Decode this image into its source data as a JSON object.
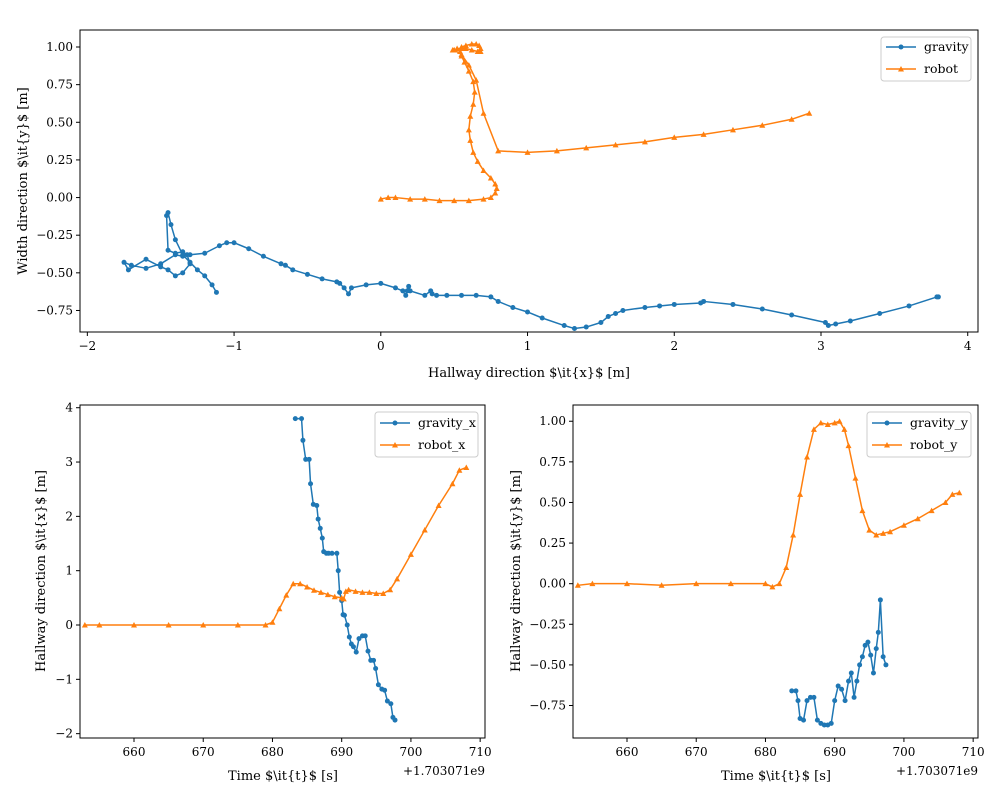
{
  "colors": {
    "gravity": "#1f77b4",
    "robot": "#ff7f0e"
  },
  "chart_data": [
    {
      "type": "line",
      "xlabel": "Hallway direction $\\it{x}$ [m]",
      "ylabel": "Width direction $\\it{y}$ [m]",
      "xlim": [
        -2.05,
        4.07
      ],
      "ylim": [
        -0.893,
        1.113
      ],
      "xticks": [
        -2,
        -1,
        0,
        1,
        2,
        3,
        4
      ],
      "yticks": [
        -0.75,
        -0.5,
        -0.25,
        0.0,
        0.25,
        0.5,
        0.75,
        1.0
      ],
      "xtick_labels": [
        "−2",
        "−1",
        "0",
        "1",
        "2",
        "3",
        "4"
      ],
      "ytick_labels": [
        "−0.75",
        "−0.50",
        "−0.25",
        "0.00",
        "0.25",
        "0.50",
        "0.75",
        "1.00"
      ],
      "legend_position": "top-right",
      "grid": false,
      "series": [
        {
          "name": "gravity",
          "marker": "circle",
          "x": [
            3.8,
            3.79,
            3.6,
            3.4,
            3.2,
            3.1,
            3.05,
            3.03,
            2.8,
            2.6,
            2.4,
            2.2,
            2.18,
            2.0,
            1.9,
            1.8,
            1.65,
            1.6,
            1.55,
            1.5,
            1.4,
            1.32,
            1.25,
            1.1,
            1.0,
            0.9,
            0.8,
            0.75,
            0.65,
            0.55,
            0.45,
            0.38,
            0.35,
            0.34,
            0.3,
            0.2,
            0.19,
            0.18,
            0.17,
            0.15,
            0.1,
            0.0,
            -0.1,
            -0.2,
            -0.22,
            -0.25,
            -0.28,
            -0.3,
            -0.4,
            -0.5,
            -0.6,
            -0.65,
            -0.68,
            -0.8,
            -0.9,
            -1.0,
            -1.05,
            -1.1,
            -1.2,
            -1.3,
            -1.35,
            -1.4,
            -1.5,
            -1.6,
            -1.7,
            -1.75,
            -1.72,
            -1.6,
            -1.5,
            -1.45,
            -1.4,
            -1.35,
            -1.3,
            -1.32,
            -1.35,
            -1.4,
            -1.45,
            -1.46,
            -1.45,
            -1.43,
            -1.4,
            -1.35,
            -1.3,
            -1.25,
            -1.2,
            -1.15,
            -1.12
          ],
          "y": [
            -0.66,
            -0.66,
            -0.72,
            -0.77,
            -0.82,
            -0.84,
            -0.85,
            -0.83,
            -0.78,
            -0.74,
            -0.71,
            -0.69,
            -0.7,
            -0.71,
            -0.72,
            -0.73,
            -0.75,
            -0.77,
            -0.79,
            -0.83,
            -0.86,
            -0.87,
            -0.85,
            -0.8,
            -0.76,
            -0.73,
            -0.69,
            -0.66,
            -0.65,
            -0.65,
            -0.65,
            -0.65,
            -0.64,
            -0.62,
            -0.65,
            -0.62,
            -0.59,
            -0.62,
            -0.65,
            -0.62,
            -0.6,
            -0.57,
            -0.58,
            -0.6,
            -0.64,
            -0.6,
            -0.57,
            -0.56,
            -0.54,
            -0.51,
            -0.48,
            -0.45,
            -0.44,
            -0.39,
            -0.34,
            -0.3,
            -0.3,
            -0.32,
            -0.37,
            -0.38,
            -0.39,
            -0.38,
            -0.44,
            -0.47,
            -0.45,
            -0.43,
            -0.48,
            -0.41,
            -0.46,
            -0.48,
            -0.52,
            -0.5,
            -0.44,
            -0.38,
            -0.36,
            -0.37,
            -0.35,
            -0.12,
            -0.1,
            -0.18,
            -0.28,
            -0.38,
            -0.43,
            -0.48,
            -0.52,
            -0.58,
            -0.63
          ]
        },
        {
          "name": "robot",
          "marker": "triangle",
          "x": [
            0.0,
            0.05,
            0.1,
            0.2,
            0.3,
            0.4,
            0.5,
            0.6,
            0.7,
            0.75,
            0.78,
            0.79,
            0.78,
            0.75,
            0.7,
            0.66,
            0.63,
            0.61,
            0.6,
            0.61,
            0.63,
            0.64,
            0.63,
            0.6,
            0.57,
            0.55,
            0.54,
            0.55,
            0.58,
            0.62,
            0.65,
            0.67,
            0.68,
            0.68,
            0.66,
            0.62,
            0.58,
            0.55,
            0.52,
            0.5,
            0.49,
            0.5,
            0.55,
            0.6,
            0.65,
            0.7,
            0.8,
            1.0,
            1.2,
            1.4,
            1.6,
            1.8,
            2.0,
            2.2,
            2.4,
            2.6,
            2.8,
            2.92
          ],
          "y": [
            -0.01,
            0.0,
            0.0,
            -0.01,
            -0.01,
            -0.02,
            -0.02,
            -0.02,
            -0.01,
            0.0,
            0.03,
            0.06,
            0.09,
            0.13,
            0.18,
            0.24,
            0.3,
            0.38,
            0.45,
            0.54,
            0.62,
            0.7,
            0.77,
            0.84,
            0.9,
            0.94,
            0.97,
            1.0,
            1.01,
            1.02,
            1.02,
            1.01,
            0.99,
            0.97,
            0.97,
            0.98,
            0.99,
            0.99,
            0.99,
            0.98,
            0.98,
            0.98,
            0.95,
            0.88,
            0.78,
            0.56,
            0.31,
            0.3,
            0.31,
            0.33,
            0.35,
            0.37,
            0.4,
            0.42,
            0.45,
            0.48,
            0.52,
            0.56
          ]
        }
      ]
    },
    {
      "type": "line",
      "xlabel": "Time $\\it{t}$ [s]",
      "ylabel": "Hallway direction $\\it{x}$ [m]",
      "x_offset_label": "+1.703071e9",
      "xlim": [
        652.2,
        710.7
      ],
      "ylim": [
        -2.08,
        4.05
      ],
      "xticks": [
        660,
        670,
        680,
        690,
        700,
        710
      ],
      "yticks": [
        -2,
        -1,
        0,
        1,
        2,
        3,
        4
      ],
      "xtick_labels": [
        "660",
        "670",
        "680",
        "690",
        "700",
        "710"
      ],
      "ytick_labels": [
        "−2",
        "−1",
        "0",
        "1",
        "2",
        "3",
        "4"
      ],
      "legend_position": "top-right",
      "grid": false,
      "series": [
        {
          "name": "gravity_x",
          "marker": "circle",
          "x": [
            683.3,
            684.2,
            684.4,
            684.8,
            685.3,
            685.5,
            685.9,
            686.4,
            686.6,
            686.9,
            687.2,
            687.4,
            687.8,
            688.1,
            688.6,
            689.3,
            689.5,
            689.7,
            690.0,
            690.2,
            690.4,
            690.8,
            691.1,
            691.4,
            691.7,
            692.1,
            692.5,
            693.0,
            693.4,
            693.8,
            694.2,
            694.6,
            694.9,
            695.3,
            695.8,
            696.2,
            696.6,
            697.1,
            697.4,
            697.7
          ],
          "y": [
            3.8,
            3.8,
            3.4,
            3.05,
            3.05,
            2.6,
            2.22,
            2.2,
            1.95,
            1.78,
            1.6,
            1.35,
            1.32,
            1.32,
            1.32,
            1.32,
            1.0,
            0.6,
            0.45,
            0.19,
            0.18,
            0.0,
            -0.22,
            -0.35,
            -0.4,
            -0.5,
            -0.25,
            -0.2,
            -0.2,
            -0.48,
            -0.65,
            -0.65,
            -0.8,
            -1.1,
            -1.18,
            -1.2,
            -1.4,
            -1.45,
            -1.7,
            -1.75
          ]
        },
        {
          "name": "robot_x",
          "marker": "triangle",
          "x": [
            652.9,
            655,
            660,
            665,
            670,
            675,
            679,
            680,
            681,
            682,
            683,
            684,
            685,
            686,
            687,
            688,
            689,
            690,
            690.3,
            690.6,
            691,
            692,
            693,
            694,
            695,
            696,
            697,
            698,
            700,
            702,
            704,
            706,
            707,
            708
          ],
          "y": [
            0.0,
            0.0,
            0.0,
            0.0,
            0.0,
            0.0,
            0.0,
            0.05,
            0.3,
            0.55,
            0.76,
            0.76,
            0.7,
            0.64,
            0.6,
            0.56,
            0.52,
            0.5,
            0.48,
            0.62,
            0.65,
            0.62,
            0.6,
            0.6,
            0.58,
            0.58,
            0.65,
            0.85,
            1.3,
            1.75,
            2.2,
            2.6,
            2.85,
            2.9
          ]
        }
      ]
    },
    {
      "type": "line",
      "xlabel": "Time $\\it{t}$ [s]",
      "ylabel": "Hallway direction $\\it{y}$ [m]",
      "x_offset_label": "+1.703071e9",
      "xlim": [
        652.2,
        710.7
      ],
      "ylim": [
        -0.95,
        1.1
      ],
      "xticks": [
        660,
        670,
        680,
        690,
        700,
        710
      ],
      "yticks": [
        -0.75,
        -0.5,
        -0.25,
        0.0,
        0.25,
        0.5,
        0.75,
        1.0
      ],
      "xtick_labels": [
        "660",
        "670",
        "680",
        "690",
        "700",
        "710"
      ],
      "ytick_labels": [
        "−0.75",
        "−0.50",
        "−0.25",
        "0.00",
        "0.25",
        "0.50",
        "0.75",
        "1.00"
      ],
      "legend_position": "top-right",
      "grid": false,
      "series": [
        {
          "name": "gravity_y",
          "marker": "circle",
          "x": [
            683.8,
            684.4,
            684.7,
            685.0,
            685.5,
            686.0,
            686.5,
            687.0,
            687.5,
            688.0,
            688.5,
            689.0,
            689.5,
            690.0,
            690.5,
            691.0,
            691.5,
            692.0,
            692.4,
            692.8,
            693.2,
            693.6,
            694.0,
            694.4,
            694.8,
            695.2,
            695.6,
            696.0,
            696.3,
            696.6,
            697.0,
            697.4
          ],
          "y": [
            -0.66,
            -0.66,
            -0.72,
            -0.83,
            -0.84,
            -0.72,
            -0.7,
            -0.7,
            -0.84,
            -0.86,
            -0.87,
            -0.87,
            -0.86,
            -0.72,
            -0.63,
            -0.65,
            -0.72,
            -0.6,
            -0.55,
            -0.7,
            -0.6,
            -0.5,
            -0.45,
            -0.38,
            -0.36,
            -0.44,
            -0.55,
            -0.4,
            -0.3,
            -0.1,
            -0.45,
            -0.5
          ]
        },
        {
          "name": "robot_y",
          "marker": "triangle",
          "x": [
            652.9,
            655,
            660,
            665,
            670,
            675,
            680,
            681,
            682,
            683,
            684,
            685,
            686,
            687,
            688,
            689,
            690,
            690.7,
            691.4,
            692,
            693,
            694,
            695,
            696,
            697,
            698,
            700,
            702,
            704,
            706,
            707,
            708
          ],
          "y": [
            -0.01,
            0.0,
            0.0,
            -0.01,
            0.0,
            0.0,
            0.0,
            -0.02,
            0.0,
            0.1,
            0.3,
            0.55,
            0.78,
            0.95,
            0.99,
            0.98,
            0.99,
            1.0,
            0.95,
            0.85,
            0.65,
            0.45,
            0.33,
            0.3,
            0.31,
            0.32,
            0.36,
            0.4,
            0.45,
            0.5,
            0.55,
            0.56
          ]
        }
      ]
    }
  ]
}
